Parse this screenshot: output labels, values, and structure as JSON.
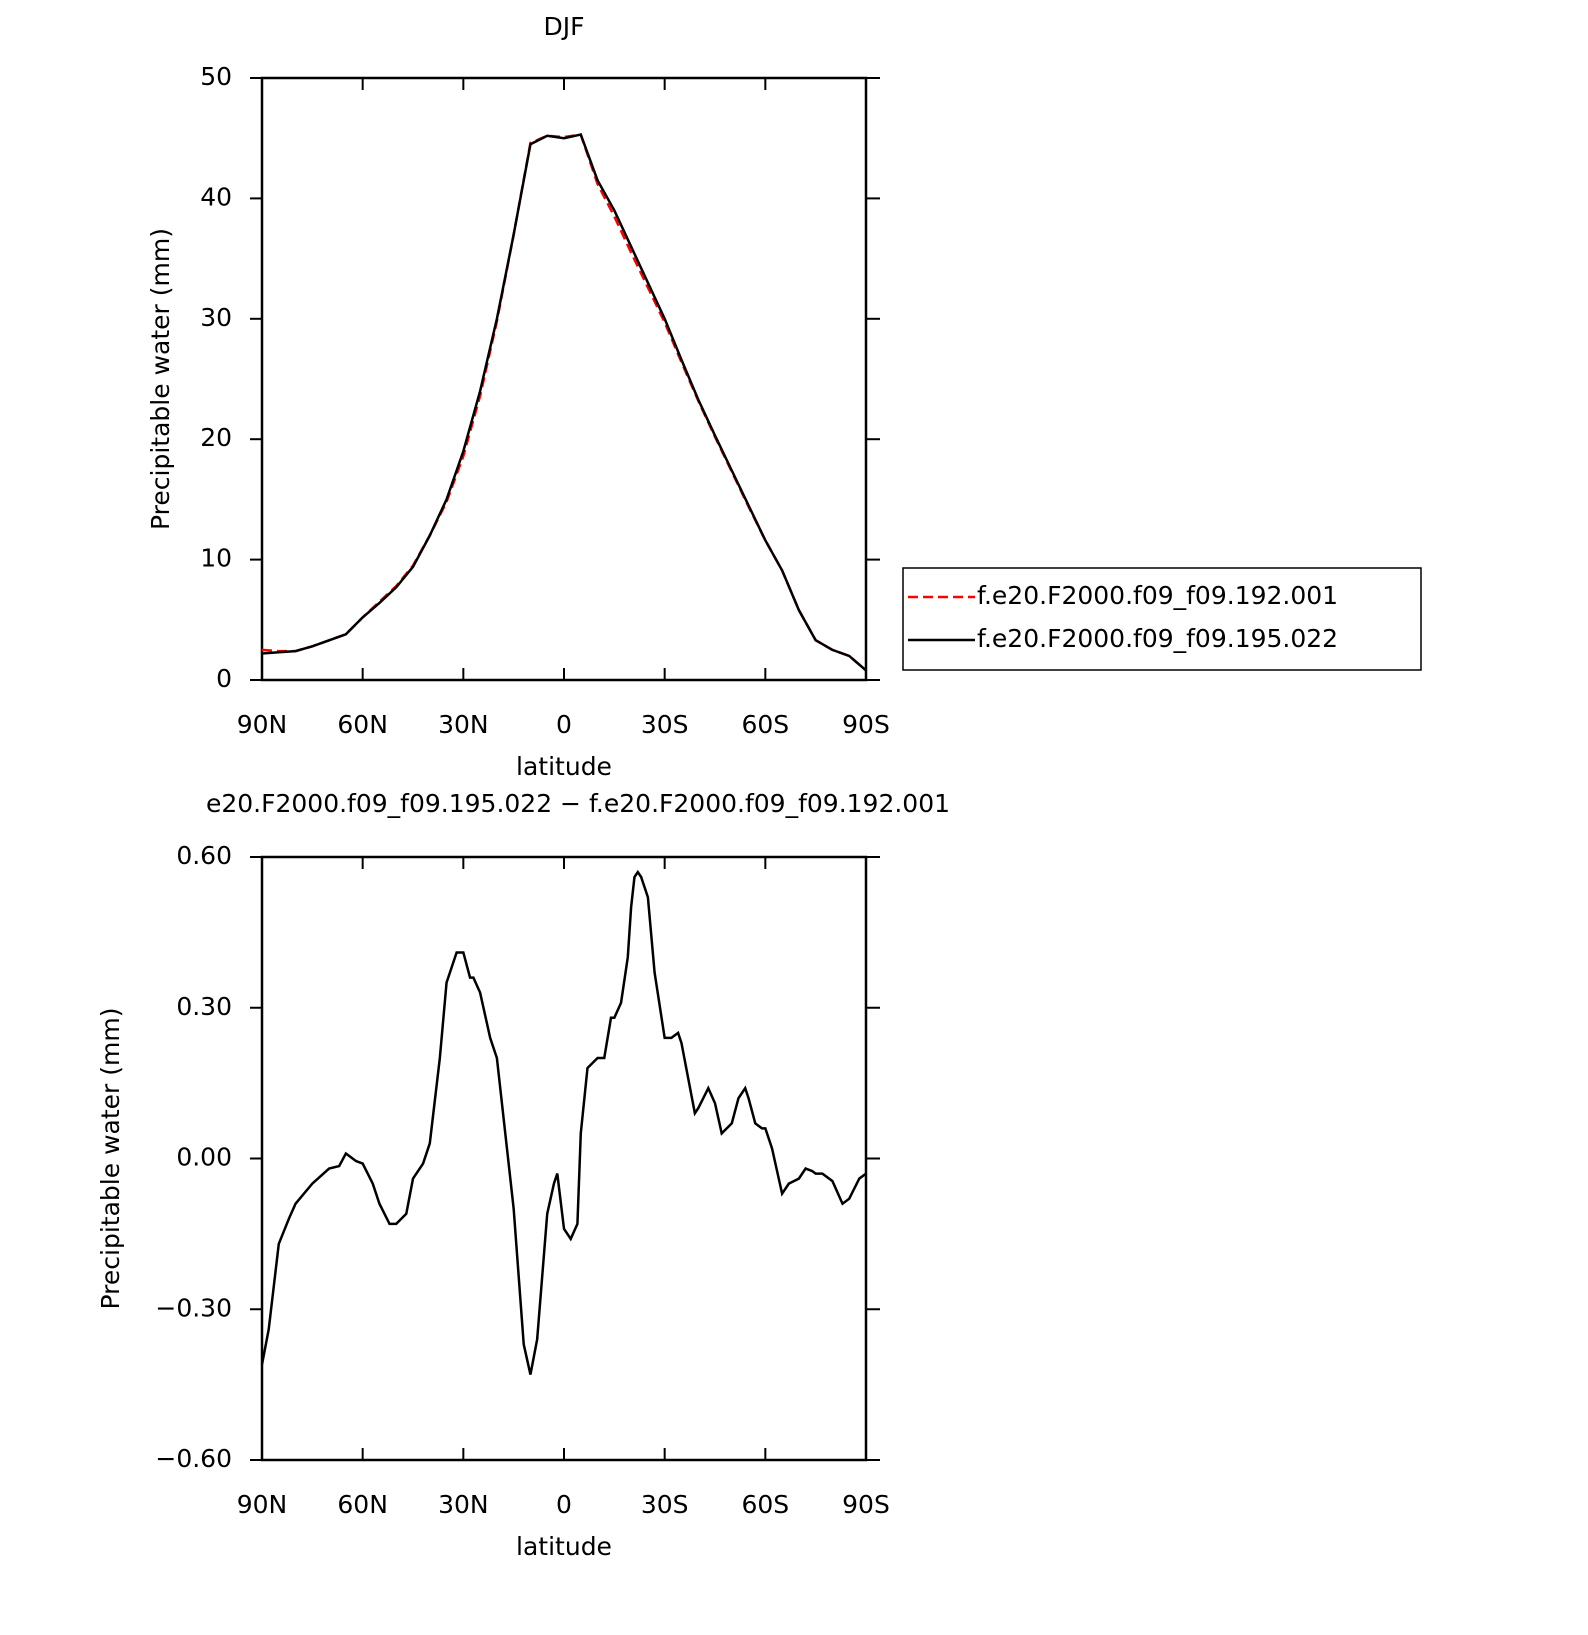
{
  "chart_data": [
    {
      "type": "line",
      "title": "DJF",
      "xlabel": "latitude",
      "ylabel": "Precipitable water (mm)",
      "x": [
        90,
        85,
        80,
        75,
        70,
        65,
        60,
        55,
        50,
        45,
        40,
        35,
        30,
        25,
        20,
        15,
        10,
        5,
        0,
        -5,
        -10,
        -15,
        -20,
        -25,
        -30,
        -35,
        -40,
        -45,
        -50,
        -55,
        -60,
        -65,
        -70,
        -75,
        -80,
        -85,
        -90
      ],
      "series": [
        {
          "name": "f.e20.F2000.f09_f09.192.001",
          "color": "#ff0000",
          "style": "dashed",
          "values": [
            2.5,
            2.4,
            2.4,
            2.8,
            3.3,
            3.8,
            5.2,
            6.5,
            7.8,
            9.5,
            12,
            14.8,
            18.6,
            23.6,
            29.8,
            37,
            44.6,
            45.2,
            45.1,
            45.3,
            41.2,
            38.5,
            35.5,
            32.6,
            29.7,
            26.4,
            23.2,
            20.2,
            17.3,
            14.4,
            11.6,
            9.1,
            5.8,
            3.3,
            2.5,
            2.0,
            0.8
          ]
        },
        {
          "name": "f.e20.F2000.f09_f09.195.022",
          "color": "#000000",
          "style": "solid",
          "values": [
            2.2,
            2.3,
            2.4,
            2.8,
            3.3,
            3.8,
            5.2,
            6.4,
            7.7,
            9.4,
            12,
            15,
            19,
            24,
            30,
            37,
            44.5,
            45.2,
            45,
            45.3,
            41.5,
            39,
            36,
            33,
            30,
            26.6,
            23.3,
            20.3,
            17.4,
            14.5,
            11.6,
            9.1,
            5.8,
            3.3,
            2.5,
            2.0,
            0.8
          ]
        }
      ],
      "xlim": [
        90,
        -90
      ],
      "xticks": [
        {
          "value": 90,
          "label": "90N"
        },
        {
          "value": 60,
          "label": "60N"
        },
        {
          "value": 30,
          "label": "30N"
        },
        0,
        {
          "value": -30,
          "label": "30S"
        },
        {
          "value": -60,
          "label": "60S"
        },
        {
          "value": -90,
          "label": "90S"
        }
      ],
      "ylim": [
        0,
        50
      ],
      "yticks": [
        0,
        10,
        20,
        30,
        40,
        50
      ],
      "legend": "right"
    },
    {
      "type": "line",
      "title": "e20.F2000.f09_f09.195.022 − f.e20.F2000.f09_f09.192.001",
      "xlabel": "latitude",
      "ylabel": "Precipitable water (mm)",
      "x": [
        90,
        88,
        85,
        82,
        80,
        75,
        70,
        67,
        65,
        62,
        60,
        57,
        55,
        52,
        50,
        47,
        45,
        42,
        40,
        37,
        35,
        32,
        30,
        28,
        27,
        25,
        22,
        20,
        17,
        15,
        12,
        10,
        8,
        5,
        3,
        2,
        0,
        -2,
        -4,
        -5,
        -7,
        -10,
        -12,
        -14,
        -15,
        -17,
        -19,
        -20,
        -21,
        -22,
        -23,
        -25,
        -27,
        -30,
        -32,
        -34,
        -35,
        -37,
        -39,
        -40,
        -43,
        -45,
        -47,
        -50,
        -52,
        -54,
        -55,
        -57,
        -59,
        -60,
        -62,
        -64,
        -65,
        -67,
        -70,
        -72,
        -74,
        -75,
        -77,
        -80,
        -83,
        -85,
        -88,
        -90
      ],
      "series": [
        {
          "name": "difference",
          "color": "#000000",
          "style": "solid",
          "values": [
            -0.41,
            -0.34,
            -0.17,
            -0.12,
            -0.09,
            -0.05,
            -0.02,
            -0.015,
            0.01,
            -0.005,
            -0.01,
            -0.05,
            -0.09,
            -0.13,
            -0.13,
            -0.11,
            -0.04,
            -0.01,
            0.03,
            0.2,
            0.35,
            0.41,
            0.41,
            0.36,
            0.36,
            0.33,
            0.24,
            0.2,
            0.02,
            -0.1,
            -0.37,
            -0.43,
            -0.36,
            -0.11,
            -0.05,
            -0.03,
            -0.14,
            -0.16,
            -0.13,
            0.05,
            0.18,
            0.2,
            0.2,
            0.28,
            0.28,
            0.31,
            0.4,
            0.5,
            0.56,
            0.57,
            0.56,
            0.52,
            0.37,
            0.24,
            0.24,
            0.25,
            0.23,
            0.16,
            0.09,
            0.1,
            0.14,
            0.11,
            0.05,
            0.07,
            0.12,
            0.14,
            0.12,
            0.07,
            0.06,
            0.06,
            0.02,
            -0.04,
            -0.07,
            -0.05,
            -0.04,
            -0.02,
            -0.025,
            -0.03,
            -0.03,
            -0.045,
            -0.09,
            -0.08,
            -0.04,
            -0.03
          ]
        }
      ],
      "xlim": [
        90,
        -90
      ],
      "xticks": [
        {
          "value": 90,
          "label": "90N"
        },
        {
          "value": 60,
          "label": "60N"
        },
        {
          "value": 30,
          "label": "30N"
        },
        0,
        {
          "value": -30,
          "label": "30S"
        },
        {
          "value": -60,
          "label": "60S"
        },
        {
          "value": -90,
          "label": "90S"
        }
      ],
      "ylim": [
        -0.6,
        0.6
      ],
      "yticks": [
        {
          "value": -0.6,
          "label": "−0.60"
        },
        {
          "value": -0.3,
          "label": "−0.30"
        },
        {
          "value": 0,
          "label": "0.00"
        },
        {
          "value": 0.3,
          "label": "0.30"
        },
        {
          "value": 0.6,
          "label": "0.60"
        }
      ]
    }
  ]
}
